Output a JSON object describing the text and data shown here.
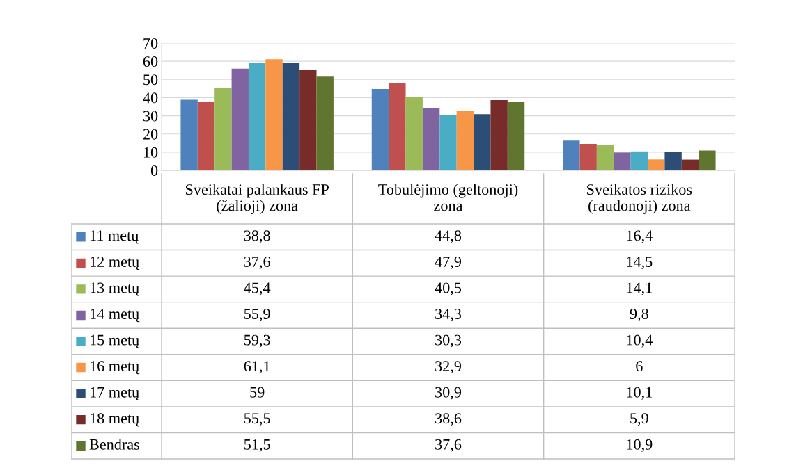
{
  "chart_data": {
    "type": "bar",
    "categories": [
      "Sveikatai palankaus FP\n(žalioji) zona",
      "Tobulėjimo (geltonoji)\nzona",
      "Sveikatos rizikos\n(raudonoji) zona"
    ],
    "series": [
      {
        "name": "11 metų",
        "color": "#4f81bd",
        "values": [
          38.8,
          44.8,
          16.4
        ],
        "value_labels": [
          "38,8",
          "44,8",
          "16,4"
        ]
      },
      {
        "name": "12 metų",
        "color": "#c0504d",
        "values": [
          37.6,
          47.9,
          14.5
        ],
        "value_labels": [
          "37,6",
          "47,9",
          "14,5"
        ]
      },
      {
        "name": "13 metų",
        "color": "#9bbb59",
        "values": [
          45.4,
          40.5,
          14.1
        ],
        "value_labels": [
          "45,4",
          "40,5",
          "14,1"
        ]
      },
      {
        "name": "14 metų",
        "color": "#8064a2",
        "values": [
          55.9,
          34.3,
          9.8
        ],
        "value_labels": [
          "55,9",
          "34,3",
          "9,8"
        ]
      },
      {
        "name": "15 metų",
        "color": "#4bacc6",
        "values": [
          59.3,
          30.3,
          10.4
        ],
        "value_labels": [
          "59,3",
          "30,3",
          "10,4"
        ]
      },
      {
        "name": "16 metų",
        "color": "#f79646",
        "values": [
          61.1,
          32.9,
          6
        ],
        "value_labels": [
          "61,1",
          "32,9",
          "6"
        ]
      },
      {
        "name": "17 metų",
        "color": "#2c4d75",
        "values": [
          59,
          30.9,
          10.1
        ],
        "value_labels": [
          "59",
          "30,9",
          "10,1"
        ]
      },
      {
        "name": "18 metų",
        "color": "#772c2a",
        "values": [
          55.5,
          38.6,
          5.9
        ],
        "value_labels": [
          "55,5",
          "38,6",
          "5,9"
        ]
      },
      {
        "name": "Bendras",
        "color": "#5f7530",
        "values": [
          51.5,
          37.6,
          10.9
        ],
        "value_labels": [
          "51,5",
          "37,6",
          "10,9"
        ]
      }
    ],
    "ylim": [
      0,
      70
    ],
    "yticks": [
      0,
      10,
      20,
      30,
      40,
      50,
      60,
      70
    ],
    "grid": "y",
    "legend": "bottom"
  }
}
